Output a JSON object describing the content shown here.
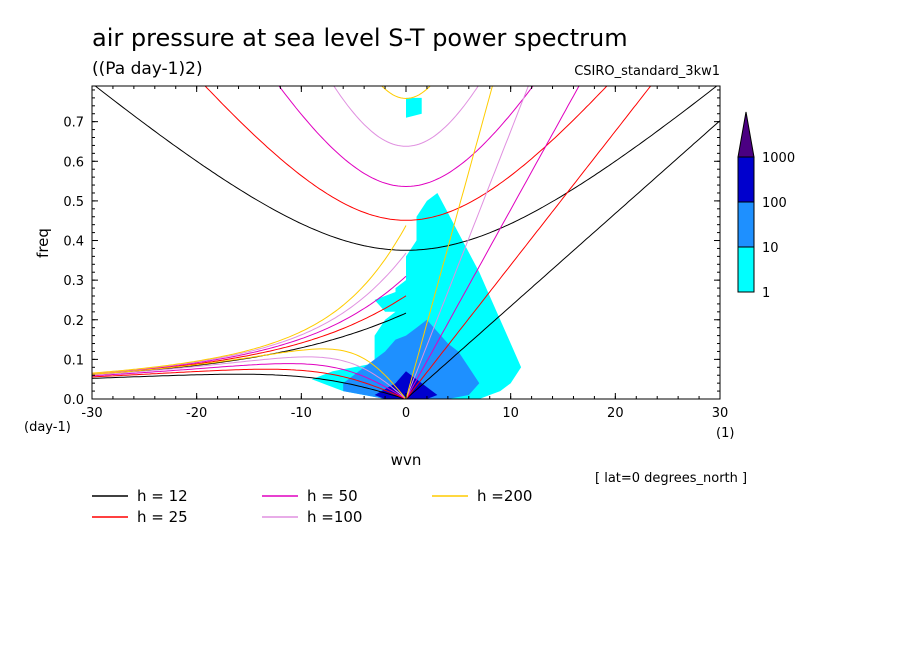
{
  "chart_data": {
    "type": "contour",
    "title": "air pressure at sea level S-T power spectrum",
    "units": "((Pa day-1)2)",
    "model": "CSIRO_standard_3kw1",
    "xlabel": "wvn",
    "ylabel": "freq",
    "x_unit": "(1)",
    "y_unit": "(day-1)",
    "xlim": [
      -30,
      30
    ],
    "ylim": [
      0,
      0.79
    ],
    "x_ticks": [
      -30,
      -20,
      -10,
      0,
      10,
      20,
      30
    ],
    "x_tick_labels": [
      "-30",
      "-20",
      "-10",
      "0",
      "10",
      "20",
      "30"
    ],
    "y_ticks": [
      0,
      0.1,
      0.2,
      0.3,
      0.4,
      0.5,
      0.6,
      0.7
    ],
    "y_tick_labels": [
      "0.0",
      "0.1",
      "0.2",
      "0.3",
      "0.4",
      "0.5",
      "0.6",
      "0.7"
    ],
    "annotation": "[ lat=0 degrees_north ]",
    "colorbar": {
      "levels": [
        "1",
        "10",
        "100",
        "1000"
      ],
      "colors": [
        "#00ffff",
        "#1e90ff",
        "#0000cd",
        "#4b0082"
      ]
    },
    "dispersion_curves": [
      {
        "label": "h = 12",
        "h": 12,
        "color": "#000000"
      },
      {
        "label": "h = 25",
        "h": 25,
        "color": "#ff0000"
      },
      {
        "label": "h = 50",
        "h": 50,
        "color": "#e000c0"
      },
      {
        "label": "h =100",
        "h": 100,
        "color": "#e090e0"
      },
      {
        "label": "h =200",
        "h": 200,
        "color": "#ffcc00"
      }
    ],
    "filled_regions": [
      {
        "level": "1-10",
        "x": [
          -9,
          -7,
          -5,
          -3,
          -3,
          -2,
          -1,
          -1,
          0,
          0,
          1,
          1,
          2,
          3,
          4,
          5,
          6,
          7,
          8,
          9,
          10,
          11,
          10,
          9,
          8,
          7,
          6,
          5,
          4,
          3,
          2,
          1,
          0,
          -1,
          -2,
          -4,
          -6,
          -8
        ],
        "y": [
          0.05,
          0.07,
          0.08,
          0.09,
          0.16,
          0.2,
          0.22,
          0.28,
          0.3,
          0.36,
          0.4,
          0.46,
          0.5,
          0.52,
          0.47,
          0.42,
          0.37,
          0.32,
          0.26,
          0.2,
          0.14,
          0.08,
          0.04,
          0.02,
          0.01,
          0.0,
          0.0,
          0.0,
          0.0,
          0.0,
          0.0,
          0.0,
          0.0,
          0.0,
          0.0,
          0.01,
          0.02,
          0.04
        ]
      },
      {
        "level": "1-10",
        "x": [
          -3,
          -1,
          0,
          1,
          0,
          -2
        ],
        "y": [
          0.25,
          0.27,
          0.3,
          0.25,
          0.22,
          0.22
        ]
      },
      {
        "level": "1-10",
        "x": [
          0,
          1.5,
          1.5,
          0
        ],
        "y": [
          0.71,
          0.72,
          0.76,
          0.76
        ]
      },
      {
        "level": "10-100",
        "x": [
          -6,
          -4,
          -2,
          -1,
          0,
          1,
          2,
          3,
          4,
          5,
          6,
          7,
          6,
          4,
          2,
          0,
          -2,
          -4,
          -6
        ],
        "y": [
          0.04,
          0.08,
          0.12,
          0.15,
          0.16,
          0.18,
          0.2,
          0.17,
          0.14,
          0.12,
          0.08,
          0.04,
          0.01,
          0.0,
          0.0,
          0.0,
          0.0,
          0.01,
          0.02
        ]
      },
      {
        "level": "100-1000",
        "x": [
          -3,
          -1,
          0,
          1,
          2,
          3,
          2,
          0,
          -2
        ],
        "y": [
          0.01,
          0.04,
          0.07,
          0.05,
          0.03,
          0.01,
          0.0,
          0.0,
          0.0
        ]
      }
    ],
    "legend_layout": "below plot, 3 columns"
  }
}
